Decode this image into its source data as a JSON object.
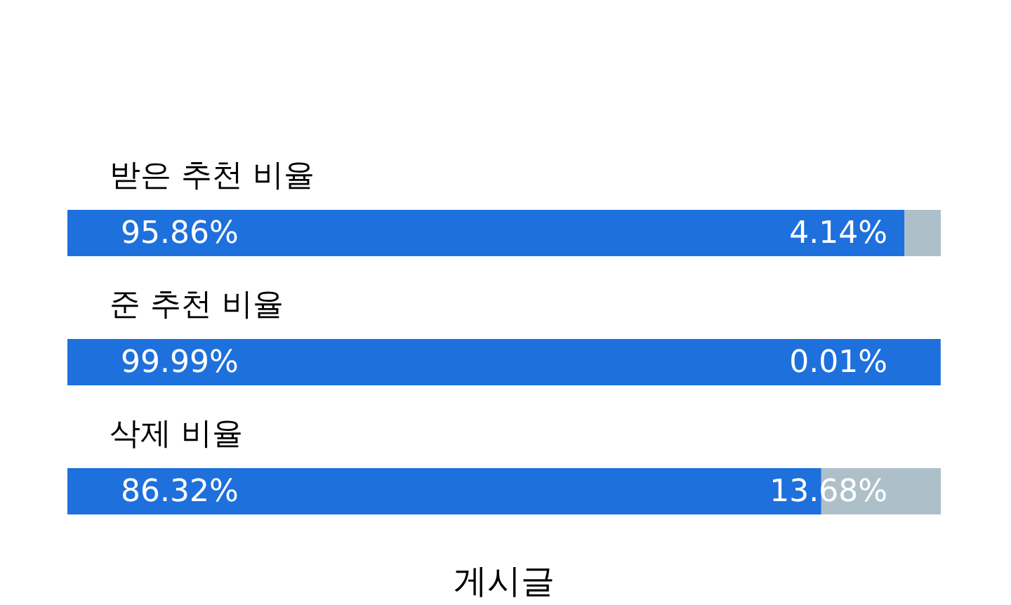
{
  "chart_data": {
    "type": "bar",
    "orientation": "horizontal",
    "stacked": true,
    "categories": [
      "받은 추천 비율",
      "준 추천 비율",
      "삭제 비율"
    ],
    "series": [
      {
        "color": "#1e70dc",
        "values": [
          95.86,
          99.99,
          86.32
        ],
        "value_labels": [
          "95.86%",
          "99.99%",
          "86.32%"
        ]
      },
      {
        "color": "#adc0ca",
        "values": [
          4.14,
          0.01,
          13.68
        ],
        "value_labels": [
          "4.14%",
          "0.01%",
          "13.68%"
        ]
      }
    ],
    "xlim": [
      0,
      100
    ],
    "tick_labels": "y",
    "annotations": [
      "게시글"
    ]
  }
}
